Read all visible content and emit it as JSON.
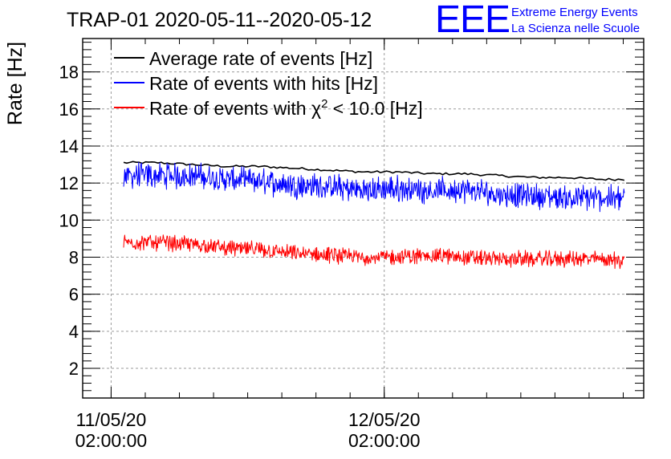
{
  "chart_data": {
    "type": "line",
    "title": "TRAP-01 2020-05-11--2020-05-12",
    "ylabel": "Rate [Hz]",
    "xlabel": "",
    "ylim": [
      0.4,
      19.8
    ],
    "yticks": [
      2,
      4,
      6,
      8,
      10,
      12,
      14,
      16,
      18
    ],
    "xlim_hours": [
      -0.6,
      48.7
    ],
    "xticks": [
      {
        "hour": 1.9,
        "date": "11/05/20",
        "time": "02:00:00"
      },
      {
        "hour": 25.9,
        "date": "12/05/20",
        "time": "02:00:00"
      }
    ],
    "grid": true,
    "legend_position": "top-left",
    "series": [
      {
        "name": "Average rate of events [Hz]",
        "color": "#000000",
        "style": "smooth",
        "x": [
          3,
          6,
          9,
          12,
          15,
          18,
          21,
          24,
          27,
          30,
          33,
          36,
          39,
          42,
          45,
          47
        ],
        "y": [
          13.1,
          13.1,
          13.0,
          12.9,
          12.9,
          12.8,
          12.7,
          12.6,
          12.6,
          12.5,
          12.5,
          12.4,
          12.3,
          12.3,
          12.2,
          12.2
        ]
      },
      {
        "name": "Rate of events with hits [Hz]",
        "color": "#0000ff",
        "style": "noisy",
        "noise": 0.55,
        "x": [
          3,
          6,
          9,
          12,
          15,
          18,
          21,
          24,
          27,
          30,
          33,
          36,
          39,
          42,
          45,
          47
        ],
        "y": [
          12.4,
          12.4,
          12.4,
          12.2,
          12.1,
          11.9,
          11.8,
          11.6,
          11.7,
          11.6,
          11.6,
          11.4,
          11.3,
          11.2,
          11.2,
          11.2
        ]
      },
      {
        "name": "Rate of events with χ² < 10.0 [Hz]",
        "color": "#ff0000",
        "style": "noisy",
        "noise": 0.35,
        "x": [
          3,
          6,
          9,
          12,
          15,
          18,
          21,
          24,
          27,
          30,
          33,
          36,
          39,
          42,
          45,
          47
        ],
        "y": [
          8.8,
          8.8,
          8.7,
          8.5,
          8.4,
          8.2,
          8.1,
          8.0,
          8.0,
          8.1,
          8.0,
          7.9,
          7.9,
          7.9,
          7.9,
          7.8
        ]
      }
    ]
  },
  "logo": {
    "mark": "EEE",
    "line1": "Extreme Energy Events",
    "line2": "La Scienza nelle Scuole",
    "color": "#0000ff"
  },
  "legend": {
    "avg_label": "Average rate of events [Hz]",
    "hits_label": "Rate of events with hits [Hz]",
    "chi_prefix": "Rate of events with ",
    "chi_symbol": "χ",
    "chi_sup": "2",
    "chi_suffix": " < 10.0 [Hz]"
  }
}
